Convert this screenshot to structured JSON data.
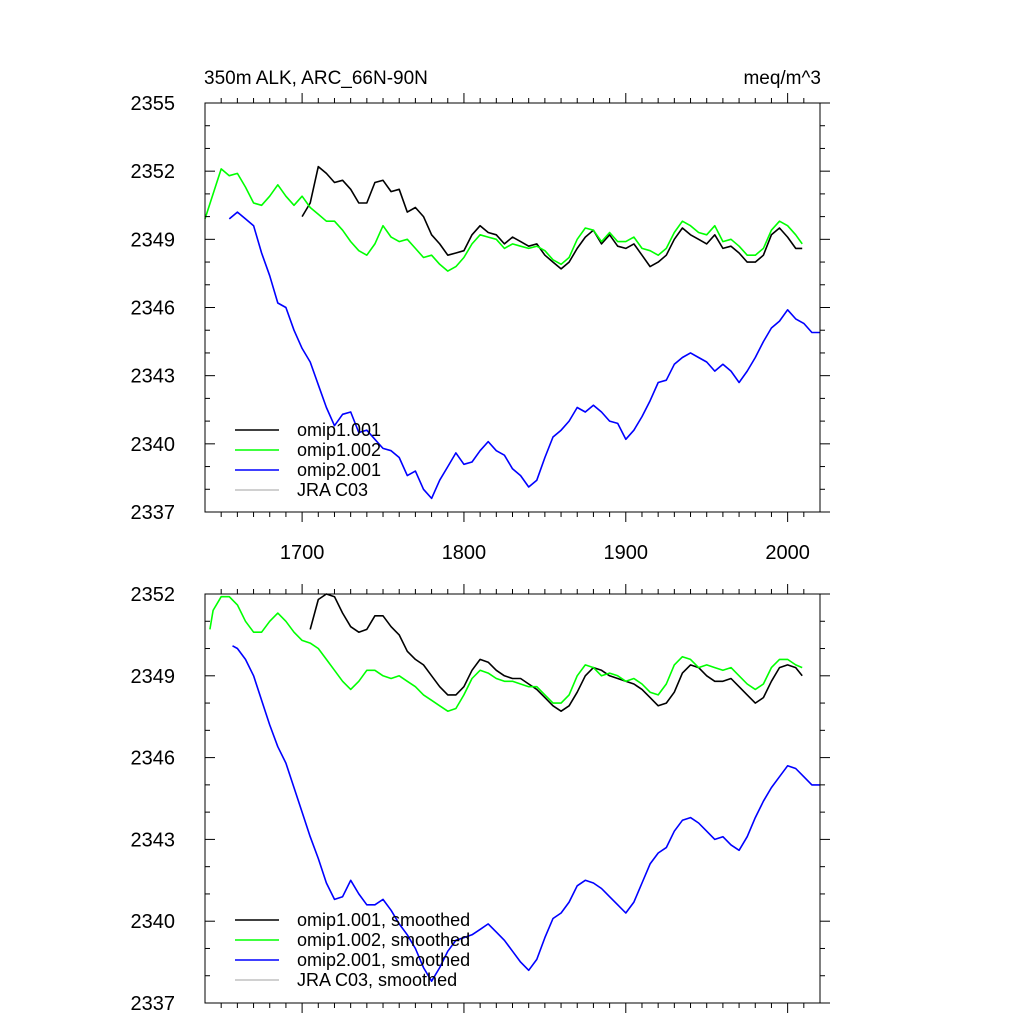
{
  "chart_data": [
    {
      "type": "line",
      "title_left": "350m ALK, ARC_66N-90N",
      "title_right": "meq/m^3",
      "xlim": [
        1640,
        2020
      ],
      "ylim": [
        2337,
        2355
      ],
      "yticks": [
        "2337",
        "2340",
        "2343",
        "2346",
        "2349",
        "2352",
        "2355"
      ],
      "xticks": [
        "1700",
        "1800",
        "1900",
        "2000"
      ],
      "series": [
        {
          "name": "omip1.001",
          "color": "#000000",
          "x": [
            1700,
            1705,
            1710,
            1715,
            1720,
            1725,
            1730,
            1735,
            1740,
            1745,
            1750,
            1755,
            1760,
            1765,
            1770,
            1775,
            1780,
            1785,
            1790,
            1795,
            1800,
            1805,
            1810,
            1815,
            1820,
            1825,
            1830,
            1835,
            1840,
            1845,
            1850,
            1855,
            1860,
            1865,
            1870,
            1875,
            1880,
            1885,
            1890,
            1895,
            1900,
            1905,
            1910,
            1915,
            1920,
            1925,
            1930,
            1935,
            1940,
            1945,
            1950,
            1955,
            1960,
            1965,
            1970,
            1975,
            1980,
            1985,
            1990,
            1995,
            2000,
            2005,
            2009
          ],
          "y": [
            2350.0,
            2350.6,
            2352.2,
            2351.9,
            2351.5,
            2351.6,
            2351.2,
            2350.6,
            2350.6,
            2351.5,
            2351.6,
            2351.1,
            2351.2,
            2350.2,
            2350.4,
            2350.0,
            2349.2,
            2348.8,
            2348.3,
            2348.4,
            2348.5,
            2349.2,
            2349.6,
            2349.3,
            2349.2,
            2348.8,
            2349.1,
            2348.9,
            2348.7,
            2348.8,
            2348.3,
            2348.0,
            2347.7,
            2348.0,
            2348.6,
            2349.1,
            2349.4,
            2348.8,
            2349.2,
            2348.7,
            2348.6,
            2348.8,
            2348.3,
            2347.8,
            2348.0,
            2348.3,
            2349.0,
            2349.5,
            2349.2,
            2349.0,
            2348.8,
            2349.2,
            2348.6,
            2348.7,
            2348.4,
            2348.0,
            2348.0,
            2348.3,
            2349.2,
            2349.5,
            2349.1,
            2348.6,
            2348.6
          ]
        },
        {
          "name": "omip1.002",
          "color": "#00ff00",
          "x": [
            1640,
            1645,
            1650,
            1655,
            1660,
            1665,
            1670,
            1675,
            1680,
            1685,
            1690,
            1695,
            1700,
            1705,
            1710,
            1715,
            1720,
            1725,
            1730,
            1735,
            1740,
            1745,
            1750,
            1755,
            1760,
            1765,
            1770,
            1775,
            1780,
            1785,
            1790,
            1795,
            1800,
            1805,
            1810,
            1815,
            1820,
            1825,
            1830,
            1835,
            1840,
            1845,
            1850,
            1855,
            1860,
            1865,
            1870,
            1875,
            1880,
            1885,
            1890,
            1895,
            1900,
            1905,
            1910,
            1915,
            1920,
            1925,
            1930,
            1935,
            1940,
            1945,
            1950,
            1955,
            1960,
            1965,
            1970,
            1975,
            1980,
            1985,
            1990,
            1995,
            2000,
            2005,
            2009
          ],
          "y": [
            2349.9,
            2351.0,
            2352.1,
            2351.8,
            2351.9,
            2351.3,
            2350.6,
            2350.5,
            2350.9,
            2351.4,
            2350.9,
            2350.5,
            2350.9,
            2350.4,
            2350.1,
            2349.8,
            2349.8,
            2349.4,
            2348.9,
            2348.5,
            2348.3,
            2348.8,
            2349.6,
            2349.1,
            2348.9,
            2349.0,
            2348.6,
            2348.2,
            2348.3,
            2347.9,
            2347.6,
            2347.8,
            2348.2,
            2348.8,
            2349.2,
            2349.1,
            2349.0,
            2348.6,
            2348.8,
            2348.7,
            2348.6,
            2348.7,
            2348.5,
            2348.1,
            2347.9,
            2348.2,
            2349.0,
            2349.5,
            2349.4,
            2348.9,
            2349.3,
            2348.9,
            2348.9,
            2349.1,
            2348.6,
            2348.5,
            2348.3,
            2348.6,
            2349.3,
            2349.8,
            2349.6,
            2349.3,
            2349.2,
            2349.6,
            2348.9,
            2349.0,
            2348.7,
            2348.3,
            2348.3,
            2348.6,
            2349.4,
            2349.8,
            2349.6,
            2349.2,
            2348.8
          ]
        },
        {
          "name": "omip2.001",
          "color": "#0000ff",
          "x": [
            1655,
            1660,
            1665,
            1670,
            1675,
            1680,
            1685,
            1690,
            1695,
            1700,
            1705,
            1710,
            1715,
            1720,
            1725,
            1730,
            1735,
            1740,
            1745,
            1750,
            1755,
            1760,
            1765,
            1770,
            1775,
            1780,
            1785,
            1790,
            1795,
            1800,
            1805,
            1810,
            1815,
            1820,
            1825,
            1830,
            1835,
            1840,
            1845,
            1850,
            1855,
            1860,
            1865,
            1870,
            1875,
            1880,
            1885,
            1890,
            1895,
            1900,
            1905,
            1910,
            1915,
            1920,
            1925,
            1930,
            1935,
            1940,
            1945,
            1950,
            1955,
            1960,
            1965,
            1970,
            1975,
            1980,
            1985,
            1990,
            1995,
            2000,
            2005,
            2010,
            2015,
            2020
          ],
          "y": [
            2349.9,
            2350.2,
            2349.9,
            2349.6,
            2348.4,
            2347.4,
            2346.2,
            2346.0,
            2345.0,
            2344.2,
            2343.6,
            2342.6,
            2341.6,
            2340.8,
            2341.3,
            2341.4,
            2340.5,
            2340.6,
            2340.2,
            2339.8,
            2339.7,
            2339.4,
            2338.6,
            2338.8,
            2338.0,
            2337.6,
            2338.4,
            2339.0,
            2339.6,
            2339.1,
            2339.2,
            2339.7,
            2340.1,
            2339.7,
            2339.5,
            2338.9,
            2338.6,
            2338.1,
            2338.4,
            2339.4,
            2340.3,
            2340.6,
            2341.0,
            2341.6,
            2341.4,
            2341.7,
            2341.4,
            2341.0,
            2340.9,
            2340.2,
            2340.6,
            2341.2,
            2341.9,
            2342.7,
            2342.8,
            2343.5,
            2343.8,
            2344.0,
            2343.8,
            2343.6,
            2343.2,
            2343.5,
            2343.2,
            2342.7,
            2343.2,
            2343.8,
            2344.5,
            2345.1,
            2345.4,
            2345.9,
            2345.5,
            2345.3,
            2344.9,
            2344.9
          ]
        },
        {
          "name": "JRA C03",
          "color": "#c0c0c0",
          "x": [],
          "y": []
        }
      ]
    },
    {
      "type": "line",
      "xlim": [
        1640,
        2020
      ],
      "ylim": [
        2337,
        2352
      ],
      "yticks": [
        "2337",
        "2340",
        "2343",
        "2346",
        "2349",
        "2352"
      ],
      "series": [
        {
          "name": "omip1.001, smoothed",
          "color": "#000000",
          "x": [
            1705,
            1710,
            1715,
            1720,
            1725,
            1730,
            1735,
            1740,
            1745,
            1750,
            1755,
            1760,
            1765,
            1770,
            1775,
            1780,
            1785,
            1790,
            1795,
            1800,
            1805,
            1810,
            1815,
            1820,
            1825,
            1830,
            1835,
            1840,
            1845,
            1850,
            1855,
            1860,
            1865,
            1870,
            1875,
            1880,
            1885,
            1890,
            1895,
            1900,
            1905,
            1910,
            1915,
            1920,
            1925,
            1930,
            1935,
            1940,
            1945,
            1950,
            1955,
            1960,
            1965,
            1970,
            1975,
            1980,
            1985,
            1990,
            1995,
            2000,
            2005,
            2009
          ],
          "y": [
            2350.7,
            2351.8,
            2352.0,
            2351.9,
            2351.3,
            2350.8,
            2350.6,
            2350.7,
            2351.2,
            2351.2,
            2350.8,
            2350.5,
            2349.9,
            2349.6,
            2349.4,
            2349.0,
            2348.6,
            2348.3,
            2348.3,
            2348.6,
            2349.2,
            2349.6,
            2349.5,
            2349.2,
            2349.0,
            2348.9,
            2348.9,
            2348.7,
            2348.5,
            2348.2,
            2347.9,
            2347.7,
            2347.9,
            2348.4,
            2349.0,
            2349.3,
            2349.2,
            2349.0,
            2348.9,
            2348.8,
            2348.7,
            2348.5,
            2348.2,
            2347.9,
            2348.0,
            2348.4,
            2349.1,
            2349.4,
            2349.3,
            2349.0,
            2348.8,
            2348.8,
            2348.9,
            2348.6,
            2348.3,
            2348.0,
            2348.2,
            2348.8,
            2349.3,
            2349.4,
            2349.3,
            2349.0
          ]
        },
        {
          "name": "omip1.002, smoothed",
          "color": "#00ff00",
          "x": [
            1643,
            1645,
            1650,
            1655,
            1660,
            1665,
            1670,
            1675,
            1680,
            1685,
            1690,
            1695,
            1700,
            1705,
            1710,
            1715,
            1720,
            1725,
            1730,
            1735,
            1740,
            1745,
            1750,
            1755,
            1760,
            1765,
            1770,
            1775,
            1780,
            1785,
            1790,
            1795,
            1800,
            1805,
            1810,
            1815,
            1820,
            1825,
            1830,
            1835,
            1840,
            1845,
            1850,
            1855,
            1860,
            1865,
            1870,
            1875,
            1880,
            1885,
            1890,
            1895,
            1900,
            1905,
            1910,
            1915,
            1920,
            1925,
            1930,
            1935,
            1940,
            1945,
            1950,
            1955,
            1960,
            1965,
            1970,
            1975,
            1980,
            1985,
            1990,
            1995,
            2000,
            2005,
            2009
          ],
          "y": [
            2350.7,
            2351.4,
            2351.9,
            2351.9,
            2351.6,
            2351.0,
            2350.6,
            2350.6,
            2351.0,
            2351.3,
            2351.0,
            2350.6,
            2350.3,
            2350.2,
            2350.0,
            2349.6,
            2349.2,
            2348.8,
            2348.5,
            2348.8,
            2349.2,
            2349.2,
            2349.0,
            2348.9,
            2349.0,
            2348.8,
            2348.6,
            2348.3,
            2348.1,
            2347.9,
            2347.7,
            2347.8,
            2348.3,
            2348.9,
            2349.2,
            2349.1,
            2348.9,
            2348.8,
            2348.8,
            2348.7,
            2348.6,
            2348.6,
            2348.3,
            2348.0,
            2348.0,
            2348.3,
            2349.0,
            2349.4,
            2349.3,
            2349.0,
            2349.1,
            2349.0,
            2348.8,
            2348.9,
            2348.7,
            2348.4,
            2348.3,
            2348.7,
            2349.4,
            2349.7,
            2349.6,
            2349.3,
            2349.4,
            2349.3,
            2349.2,
            2349.3,
            2349.0,
            2348.7,
            2348.5,
            2348.7,
            2349.3,
            2349.6,
            2349.6,
            2349.4,
            2349.3
          ]
        },
        {
          "name": "omip2.001, smoothed",
          "color": "#0000ff",
          "x": [
            1657,
            1660,
            1665,
            1670,
            1675,
            1680,
            1685,
            1690,
            1695,
            1700,
            1705,
            1710,
            1715,
            1720,
            1725,
            1730,
            1735,
            1740,
            1745,
            1750,
            1755,
            1760,
            1765,
            1770,
            1775,
            1780,
            1785,
            1790,
            1795,
            1800,
            1805,
            1810,
            1815,
            1820,
            1825,
            1830,
            1835,
            1840,
            1845,
            1850,
            1855,
            1860,
            1865,
            1870,
            1875,
            1880,
            1885,
            1890,
            1895,
            1900,
            1905,
            1910,
            1915,
            1920,
            1925,
            1930,
            1935,
            1940,
            1945,
            1950,
            1955,
            1960,
            1965,
            1970,
            1975,
            1980,
            1985,
            1990,
            1995,
            2000,
            2005,
            2010,
            2015,
            2020
          ],
          "y": [
            2350.1,
            2350.0,
            2349.6,
            2349.0,
            2348.1,
            2347.2,
            2346.4,
            2345.8,
            2344.9,
            2344.0,
            2343.1,
            2342.3,
            2341.4,
            2340.8,
            2340.9,
            2341.5,
            2341.0,
            2340.6,
            2340.6,
            2340.8,
            2340.4,
            2339.9,
            2339.5,
            2339.0,
            2338.3,
            2337.8,
            2338.3,
            2338.9,
            2339.3,
            2339.4,
            2339.5,
            2339.7,
            2339.9,
            2339.6,
            2339.3,
            2338.9,
            2338.5,
            2338.2,
            2338.6,
            2339.4,
            2340.1,
            2340.3,
            2340.7,
            2341.3,
            2341.5,
            2341.4,
            2341.2,
            2340.9,
            2340.6,
            2340.3,
            2340.7,
            2341.4,
            2342.1,
            2342.5,
            2342.7,
            2343.3,
            2343.7,
            2343.8,
            2343.6,
            2343.3,
            2343.0,
            2343.1,
            2342.8,
            2342.6,
            2343.1,
            2343.8,
            2344.4,
            2344.9,
            2345.3,
            2345.7,
            2345.6,
            2345.3,
            2345.0,
            2345.0
          ]
        },
        {
          "name": "JRA C03, smoothed",
          "color": "#c0c0c0",
          "x": [],
          "y": []
        }
      ]
    }
  ]
}
